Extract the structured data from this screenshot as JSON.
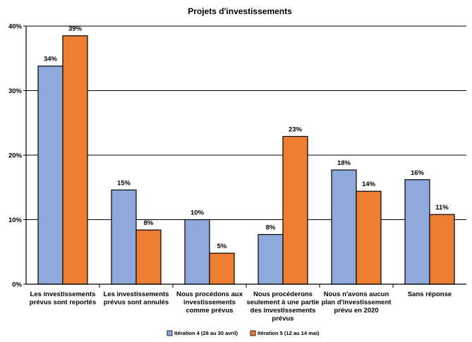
{
  "chart_data": {
    "type": "bar",
    "title": "Projets d'investissements",
    "categories": [
      [
        "Les investissements",
        "prévus sont reportés"
      ],
      [
        "Les investissements",
        "prévus sont annulés"
      ],
      [
        "Nous procédons aux",
        "investissements",
        "comme prévus"
      ],
      [
        "Nous procéderons",
        "seulement à une partie",
        "des investissements",
        "prévus"
      ],
      [
        "Nous n'avons aucun",
        "plan d'investissement",
        "prévu en 2020"
      ],
      [
        "Sans réponse"
      ]
    ],
    "series": [
      {
        "name": "Itération 4 (28 au 30 avril)",
        "color": "#8eaadb",
        "values": [
          34,
          15,
          10,
          8,
          18,
          16
        ],
        "labels": [
          "34%",
          "15%",
          "10%",
          "8%",
          "18%",
          "16%"
        ],
        "exact": [
          33.8,
          14.6,
          10.0,
          7.7,
          17.7,
          16.2
        ]
      },
      {
        "name": "Itération 5 (12 au 14 mai)",
        "color": "#ed7d31",
        "values": [
          39,
          8,
          5,
          23,
          14,
          11
        ],
        "labels": [
          "39%",
          "8%",
          "5%",
          "23%",
          "14%",
          "11%"
        ],
        "exact": [
          38.5,
          8.4,
          4.8,
          22.9,
          14.4,
          10.8
        ]
      }
    ],
    "ylim": [
      0,
      40
    ],
    "yticks": [
      0,
      10,
      20,
      30,
      40
    ],
    "ytick_labels": [
      "0%",
      "10%",
      "20%",
      "30%",
      "40%"
    ],
    "grid": true,
    "legend": "bottom"
  }
}
